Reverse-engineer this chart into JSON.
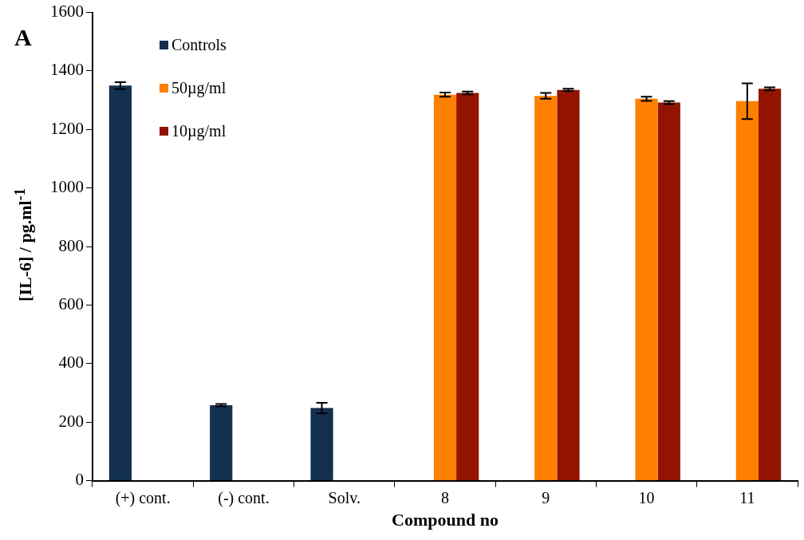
{
  "chart_data": {
    "type": "bar",
    "xlabel": "Compound no",
    "ylabel": "[IL-6] / pg.ml$^{-1}$",
    "annotations": [
      "A"
    ],
    "categories": [
      "(+) cont.",
      "(-) cont.",
      "Solv.",
      "8",
      "9",
      "10",
      "11"
    ],
    "series": [
      {
        "name": "Controls",
        "color": "#13304f",
        "values": [
          1350,
          258,
          248,
          null,
          null,
          null,
          null
        ],
        "errors": [
          12,
          4,
          18,
          null,
          null,
          null,
          null
        ]
      },
      {
        "name": "50µg/ml",
        "color": "#ff7f00",
        "values": [
          null,
          null,
          null,
          1319,
          1315,
          1305,
          1297
        ],
        "errors": [
          null,
          null,
          null,
          7,
          10,
          7,
          61
        ]
      },
      {
        "name": "10µg/ml",
        "color": "#921400",
        "values": [
          null,
          null,
          null,
          1325,
          1335,
          1292,
          1339
        ],
        "errors": [
          null,
          null,
          null,
          5,
          4,
          5,
          5
        ]
      }
    ],
    "ylim": [
      0,
      1600
    ],
    "yticks": [
      0,
      200,
      400,
      600,
      800,
      1000,
      1200,
      1400,
      1600
    ],
    "grid": false,
    "legend": "top left"
  }
}
